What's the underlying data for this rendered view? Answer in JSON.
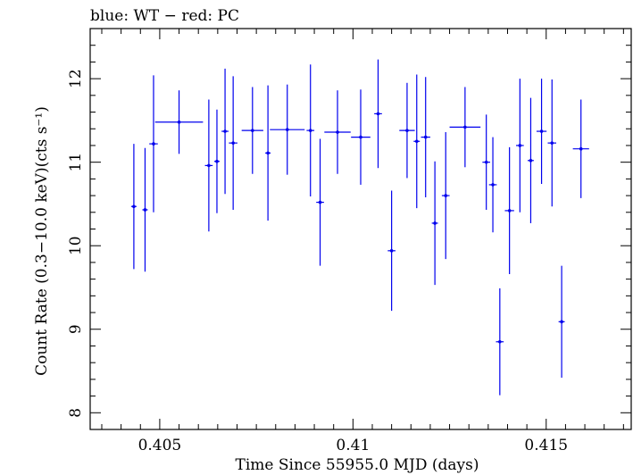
{
  "chart_data": {
    "type": "scatter",
    "title": "blue: WT − red: PC",
    "xlabel": "Time Since 55955.0 MJD (days)",
    "ylabel": "Count Rate (0.3−10.0 keV)(cts s⁻¹)",
    "xlim": [
      0.4032,
      0.4172
    ],
    "ylim": [
      7.8,
      12.6
    ],
    "x_ticks": [
      0.405,
      0.41,
      0.415
    ],
    "x_tick_labels": [
      "0.405",
      "0.41",
      "0.415"
    ],
    "y_ticks": [
      8,
      9,
      10,
      11,
      12
    ],
    "y_tick_labels": [
      "8",
      "9",
      "10",
      "11",
      "12"
    ],
    "grid": false,
    "series": [
      {
        "color": "#0000ee",
        "points": [
          {
            "x": 0.40433,
            "xerr": 7e-05,
            "y": 10.47,
            "yerr": 0.75
          },
          {
            "x": 0.40462,
            "xerr": 7e-05,
            "y": 10.43,
            "yerr": 0.74
          },
          {
            "x": 0.40484,
            "xerr": 0.00011,
            "y": 11.22,
            "yerr": 0.82
          },
          {
            "x": 0.4055,
            "xerr": 0.00062,
            "y": 11.48,
            "yerr": 0.38
          },
          {
            "x": 0.40627,
            "xerr": 0.0001,
            "y": 10.96,
            "yerr": 0.79
          },
          {
            "x": 0.40648,
            "xerr": 7e-05,
            "y": 11.01,
            "yerr": 0.62
          },
          {
            "x": 0.40669,
            "xerr": 9e-05,
            "y": 11.37,
            "yerr": 0.75
          },
          {
            "x": 0.4069,
            "xerr": 0.00011,
            "y": 11.23,
            "yerr": 0.8
          },
          {
            "x": 0.4074,
            "xerr": 0.00028,
            "y": 11.38,
            "yerr": 0.52
          },
          {
            "x": 0.4078,
            "xerr": 7e-05,
            "y": 11.11,
            "yerr": 0.81
          },
          {
            "x": 0.4083,
            "xerr": 0.00045,
            "y": 11.39,
            "yerr": 0.54
          },
          {
            "x": 0.4089,
            "xerr": 0.0001,
            "y": 11.38,
            "yerr": 0.79
          },
          {
            "x": 0.40915,
            "xerr": 0.0001,
            "y": 10.52,
            "yerr": 0.76
          },
          {
            "x": 0.4096,
            "xerr": 0.00034,
            "y": 11.36,
            "yerr": 0.5
          },
          {
            "x": 0.4102,
            "xerr": 0.00025,
            "y": 11.3,
            "yerr": 0.57
          },
          {
            "x": 0.41065,
            "xerr": 0.0001,
            "y": 11.58,
            "yerr": 0.65
          },
          {
            "x": 0.411,
            "xerr": 0.0001,
            "y": 9.94,
            "yerr": 0.72
          },
          {
            "x": 0.4114,
            "xerr": 0.0002,
            "y": 11.38,
            "yerr": 0.57
          },
          {
            "x": 0.41165,
            "xerr": 8e-05,
            "y": 11.25,
            "yerr": 0.8
          },
          {
            "x": 0.41188,
            "xerr": 0.00012,
            "y": 11.3,
            "yerr": 0.72
          },
          {
            "x": 0.41212,
            "xerr": 8e-05,
            "y": 10.27,
            "yerr": 0.74
          },
          {
            "x": 0.4124,
            "xerr": 0.0001,
            "y": 10.6,
            "yerr": 0.76
          },
          {
            "x": 0.4129,
            "xerr": 0.0004,
            "y": 11.42,
            "yerr": 0.48
          },
          {
            "x": 0.41345,
            "xerr": 0.0001,
            "y": 11.0,
            "yerr": 0.57
          },
          {
            "x": 0.41362,
            "xerr": 0.0001,
            "y": 10.73,
            "yerr": 0.57
          },
          {
            "x": 0.4138,
            "xerr": 0.0001,
            "y": 8.85,
            "yerr": 0.64
          },
          {
            "x": 0.41405,
            "xerr": 0.00012,
            "y": 10.42,
            "yerr": 0.76
          },
          {
            "x": 0.41432,
            "xerr": 0.0001,
            "y": 11.2,
            "yerr": 0.8
          },
          {
            "x": 0.4146,
            "xerr": 8e-05,
            "y": 11.02,
            "yerr": 0.75
          },
          {
            "x": 0.41488,
            "xerr": 0.00013,
            "y": 11.37,
            "yerr": 0.63
          },
          {
            "x": 0.41515,
            "xerr": 0.00011,
            "y": 11.23,
            "yerr": 0.76
          },
          {
            "x": 0.4154,
            "xerr": 8e-05,
            "y": 9.09,
            "yerr": 0.67
          },
          {
            "x": 0.4159,
            "xerr": 0.00021,
            "y": 11.16,
            "yerr": 0.59
          }
        ]
      }
    ]
  }
}
